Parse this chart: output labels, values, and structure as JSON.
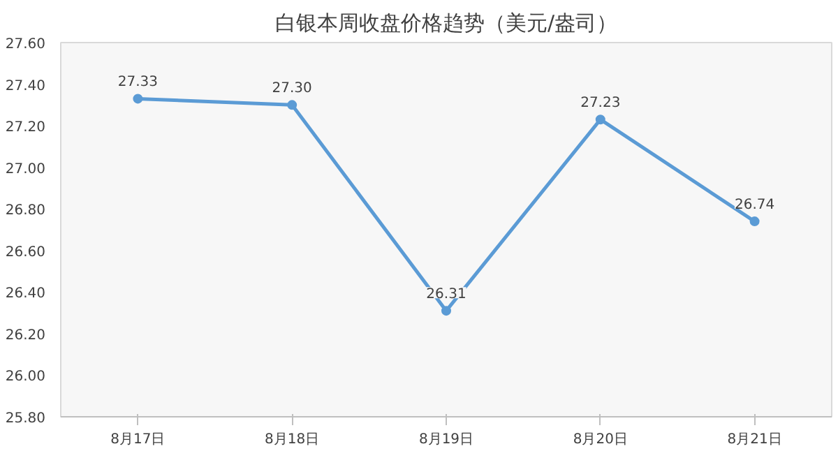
{
  "chart_data": {
    "type": "line",
    "title": "白银本周收盘价格趋势（美元/盎司）",
    "categories": [
      "8月17日",
      "8月18日",
      "8月19日",
      "8月20日",
      "8月21日"
    ],
    "values": [
      27.33,
      27.3,
      26.31,
      27.23,
      26.74
    ],
    "value_labels": [
      "27.33",
      "27.30",
      "26.31",
      "27.23",
      "26.74"
    ],
    "color": "#5b9bd5",
    "marker": "circle",
    "grid": false,
    "ylim": [
      25.8,
      27.6
    ],
    "yticks": [
      {
        "value": 25.8,
        "label": "25.80"
      },
      {
        "value": 26.0,
        "label": "26.00"
      },
      {
        "value": 26.2,
        "label": "26.20"
      },
      {
        "value": 26.4,
        "label": "26.40"
      },
      {
        "value": 26.6,
        "label": "26.60"
      },
      {
        "value": 26.8,
        "label": "26.80"
      },
      {
        "value": 27.0,
        "label": "27.00"
      },
      {
        "value": 27.2,
        "label": "27.20"
      },
      {
        "value": 27.4,
        "label": "27.40"
      },
      {
        "value": 27.6,
        "label": "27.60"
      }
    ]
  }
}
